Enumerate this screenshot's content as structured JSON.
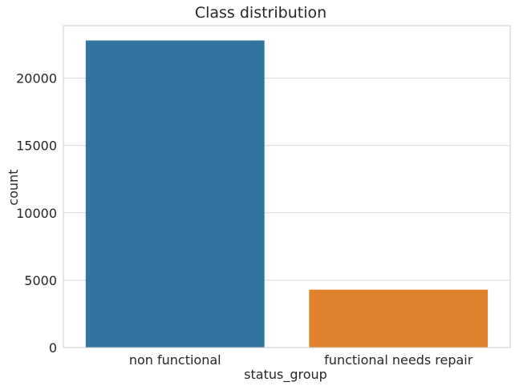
{
  "chart_data": {
    "type": "bar",
    "title": "Class distribution",
    "xlabel": "status_group",
    "ylabel": "count",
    "categories": [
      "non functional",
      "functional needs repair"
    ],
    "values": [
      22800,
      4300
    ],
    "colors": [
      "#3274a1",
      "#e1812c"
    ],
    "ylim": [
      0,
      23900
    ],
    "yticks": [
      0,
      5000,
      10000,
      15000,
      20000
    ],
    "grid": true,
    "grid_axis": "y",
    "legend": "none"
  }
}
